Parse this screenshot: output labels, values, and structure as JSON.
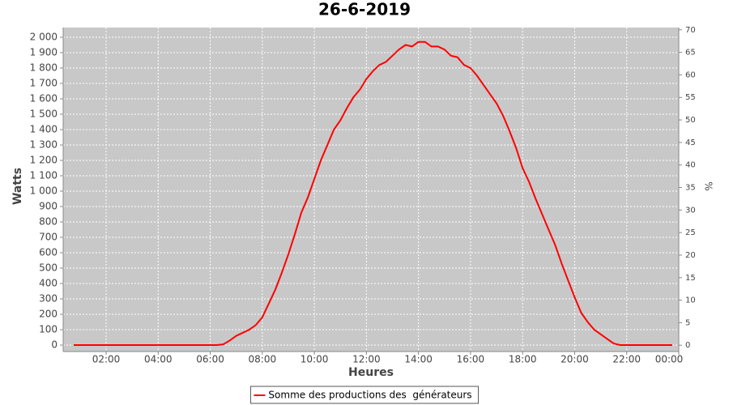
{
  "chart_data": {
    "type": "line",
    "title": "26-6-2019",
    "x_label": "Heures",
    "y_label": "Watts",
    "y2_label": "%",
    "x": [
      0.75,
      1,
      1.25,
      1.5,
      1.75,
      2,
      2.25,
      2.5,
      2.75,
      3,
      3.25,
      3.5,
      3.75,
      4,
      4.25,
      4.5,
      4.75,
      5,
      5.25,
      5.5,
      5.75,
      6,
      6.25,
      6.5,
      6.75,
      7,
      7.25,
      7.5,
      7.75,
      8,
      8.25,
      8.5,
      8.75,
      9,
      9.25,
      9.5,
      9.75,
      10,
      10.25,
      10.5,
      10.75,
      11,
      11.25,
      11.5,
      11.75,
      12,
      12.25,
      12.5,
      12.75,
      13,
      13.25,
      13.5,
      13.75,
      14,
      14.25,
      14.5,
      14.75,
      15,
      15.25,
      15.5,
      15.75,
      16,
      16.25,
      16.5,
      16.75,
      17,
      17.25,
      17.5,
      17.75,
      18,
      18.25,
      18.5,
      18.75,
      19,
      19.25,
      19.5,
      19.75,
      20,
      20.25,
      20.5,
      20.75,
      21,
      21.25,
      21.5,
      21.75,
      22,
      22.25,
      22.5,
      22.75,
      23,
      23.25,
      23.5,
      23.75
    ],
    "series": [
      {
        "name": "Somme des productions des  générateurs",
        "color": "#ff0000",
        "values": [
          0,
          0,
          0,
          0,
          0,
          0,
          0,
          0,
          0,
          0,
          0,
          0,
          0,
          0,
          0,
          0,
          0,
          0,
          0,
          0,
          0,
          0,
          0,
          5,
          30,
          60,
          80,
          100,
          130,
          180,
          270,
          360,
          470,
          590,
          720,
          860,
          960,
          1080,
          1200,
          1300,
          1400,
          1460,
          1540,
          1610,
          1660,
          1730,
          1780,
          1820,
          1840,
          1880,
          1920,
          1950,
          1940,
          1970,
          1970,
          1940,
          1940,
          1920,
          1880,
          1870,
          1820,
          1800,
          1750,
          1690,
          1630,
          1570,
          1490,
          1390,
          1280,
          1150,
          1060,
          950,
          850,
          750,
          650,
          530,
          420,
          310,
          210,
          150,
          100,
          70,
          40,
          10,
          0,
          0,
          0,
          0,
          0,
          0,
          0,
          0,
          0
        ]
      }
    ],
    "xlim": [
      0.35,
      24.0
    ],
    "xticks": [
      {
        "value": 2,
        "label": "02:00"
      },
      {
        "value": 4,
        "label": "04:00"
      },
      {
        "value": 6,
        "label": "06:00"
      },
      {
        "value": 8,
        "label": "08:00"
      },
      {
        "value": 10,
        "label": "10:00"
      },
      {
        "value": 12,
        "label": "12:00"
      },
      {
        "value": 14,
        "label": "14:00"
      },
      {
        "value": 16,
        "label": "16:00"
      },
      {
        "value": 18,
        "label": "18:00"
      },
      {
        "value": 20,
        "label": "20:00"
      },
      {
        "value": 22,
        "label": "22:00"
      },
      {
        "value": 24,
        "label": "00:00"
      }
    ],
    "ylim": [
      -42,
      2063
    ],
    "yticks": [
      0,
      100,
      200,
      300,
      400,
      500,
      600,
      700,
      800,
      900,
      {
        "value": 1000,
        "label": "1 000"
      },
      {
        "value": 1100,
        "label": "1 100"
      },
      {
        "value": 1200,
        "label": "1 200"
      },
      {
        "value": 1300,
        "label": "1 300"
      },
      {
        "value": 1400,
        "label": "1 400"
      },
      {
        "value": 1500,
        "label": "1 500"
      },
      {
        "value": 1600,
        "label": "1 600"
      },
      {
        "value": 1700,
        "label": "1 700"
      },
      {
        "value": 1800,
        "label": "1 800"
      },
      {
        "value": 1900,
        "label": "1 900"
      },
      {
        "value": 2000,
        "label": "2 000"
      }
    ],
    "y2lim": [
      -1.4,
      70.5
    ],
    "y2ticks": [
      0,
      5,
      10,
      15,
      20,
      25,
      30,
      35,
      40,
      45,
      50,
      55,
      60,
      65,
      70
    ],
    "grid": true,
    "legend": "bottom"
  }
}
